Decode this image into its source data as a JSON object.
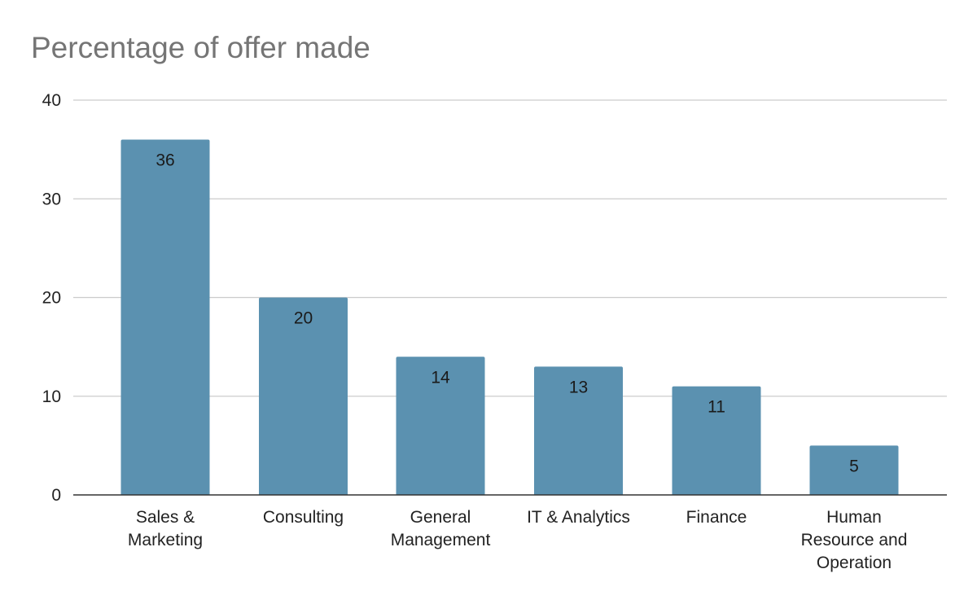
{
  "chart_data": {
    "type": "bar",
    "title": "Percentage of offer made",
    "xlabel": "",
    "ylabel": "",
    "categories": [
      "Sales & Marketing",
      "Consulting",
      "General Management",
      "IT & Analytics",
      "Finance",
      "Human Resource and Operation"
    ],
    "category_lines": [
      [
        "Sales &",
        "Marketing"
      ],
      [
        "Consulting"
      ],
      [
        "General",
        "Management"
      ],
      [
        "IT & Analytics"
      ],
      [
        "Finance"
      ],
      [
        "Human",
        "Resource and",
        "Operation"
      ]
    ],
    "values": [
      36,
      20,
      14,
      13,
      11,
      5
    ],
    "data_labels": [
      "36",
      "20",
      "14",
      "13",
      "11",
      "5"
    ],
    "ylim": [
      0,
      40
    ],
    "yticks": [
      0,
      10,
      20,
      30,
      40
    ],
    "grid": true,
    "legend": "none",
    "colors": {
      "bar": "#5b91b0",
      "grid": "#cccccc",
      "axis": "#333333",
      "title": "#757575"
    }
  }
}
